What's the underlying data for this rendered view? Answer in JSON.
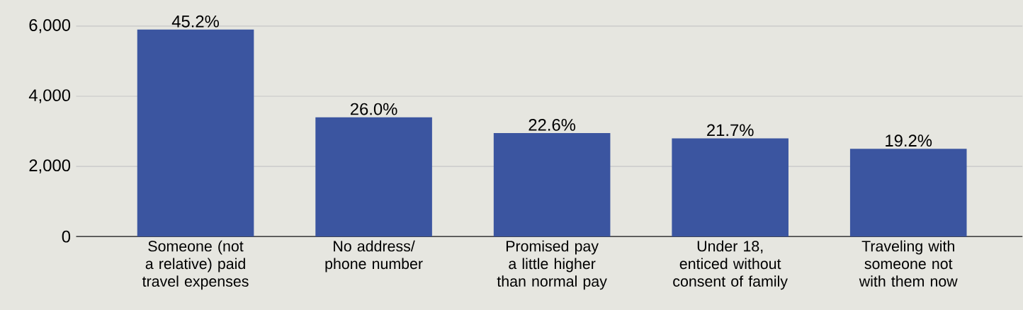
{
  "chart_data": {
    "type": "bar",
    "categories": [
      "Someone (not a relative) paid travel expenses",
      "No address/ phone number",
      "Promised pay a little higher than normal pay",
      "Under 18, enticed without consent of family",
      "Traveling with someone not with them now"
    ],
    "values": [
      5900,
      3400,
      2950,
      2800,
      2500
    ],
    "annotations": [
      {
        "text": "45.2%",
        "x": "Someone (not a relative) paid travel expenses",
        "y": 5900
      },
      {
        "text": "26.0%",
        "x": "No address/ phone number",
        "y": 3400
      },
      {
        "text": "22.6%",
        "x": "Promised pay a little higher than normal pay",
        "y": 2950
      },
      {
        "text": "21.7%",
        "x": "Under 18, enticed without consent of family",
        "y": 2800
      },
      {
        "text": "19.2%",
        "x": "Traveling with someone not with them now",
        "y": 2500
      }
    ],
    "color": "#3b55a0",
    "ylim": [
      0,
      6000
    ],
    "yticks": [
      {
        "value": 0,
        "label": "0"
      },
      {
        "value": 2000,
        "label": "2,000"
      },
      {
        "value": 4000,
        "label": "4,000"
      },
      {
        "value": 6000,
        "label": "6,000"
      }
    ],
    "grid": "y"
  }
}
